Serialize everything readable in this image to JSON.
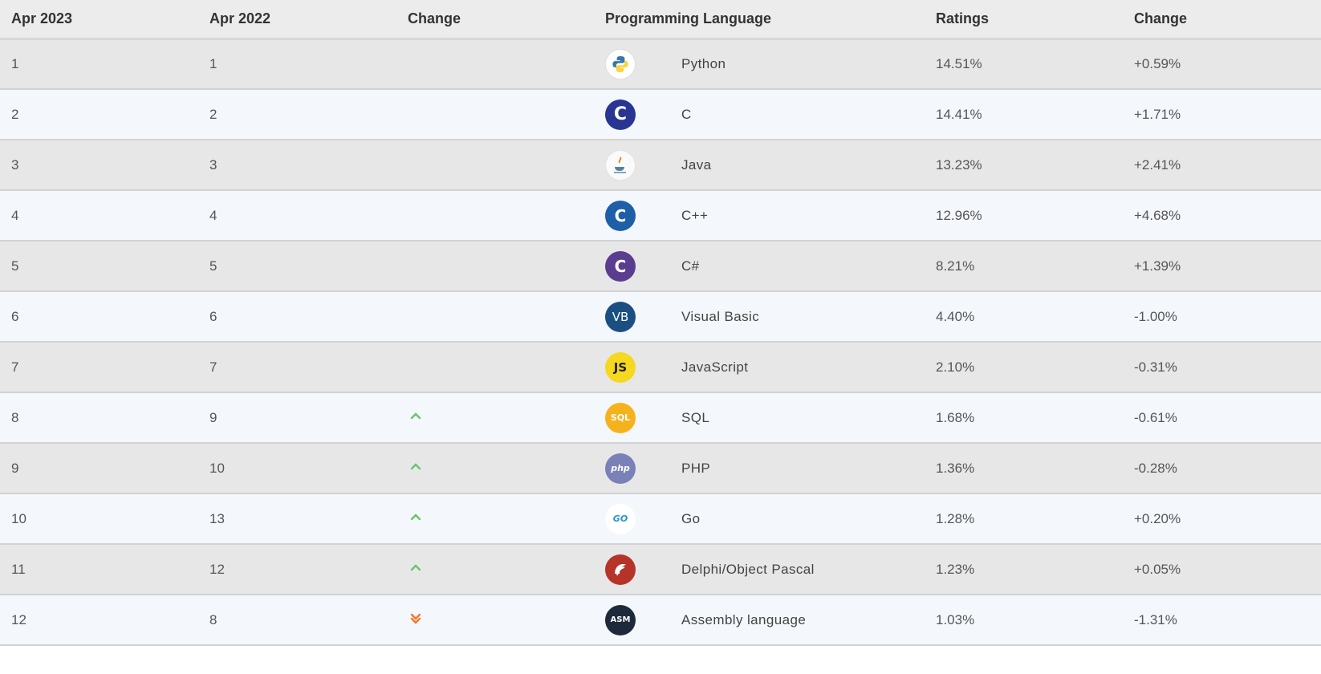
{
  "table": {
    "headers": {
      "rank_current": "Apr 2023",
      "rank_previous": "Apr 2022",
      "change": "Change",
      "language": "Programming Language",
      "ratings": "Ratings",
      "rating_change": "Change"
    },
    "rows": [
      {
        "rank": "1",
        "prev": "1",
        "change": "",
        "icon": "python-icon",
        "icon_text": "",
        "language": "Python",
        "rating": "14.51%",
        "delta": "+0.59%"
      },
      {
        "rank": "2",
        "prev": "2",
        "change": "",
        "icon": "c-icon",
        "icon_text": "C",
        "language": "C",
        "rating": "14.41%",
        "delta": "+1.71%"
      },
      {
        "rank": "3",
        "prev": "3",
        "change": "",
        "icon": "java-icon",
        "icon_text": "",
        "language": "Java",
        "rating": "13.23%",
        "delta": "+2.41%"
      },
      {
        "rank": "4",
        "prev": "4",
        "change": "",
        "icon": "cpp-icon",
        "icon_text": "C",
        "language": "C++",
        "rating": "12.96%",
        "delta": "+4.68%"
      },
      {
        "rank": "5",
        "prev": "5",
        "change": "",
        "icon": "csharp-icon",
        "icon_text": "C",
        "language": "C#",
        "rating": "8.21%",
        "delta": "+1.39%"
      },
      {
        "rank": "6",
        "prev": "6",
        "change": "",
        "icon": "visual-basic-icon",
        "icon_text": "VB",
        "language": "Visual Basic",
        "rating": "4.40%",
        "delta": "-1.00%"
      },
      {
        "rank": "7",
        "prev": "7",
        "change": "",
        "icon": "javascript-icon",
        "icon_text": "JS",
        "language": "JavaScript",
        "rating": "2.10%",
        "delta": "-0.31%"
      },
      {
        "rank": "8",
        "prev": "9",
        "change": "up",
        "icon": "sql-icon",
        "icon_text": "SQL",
        "language": "SQL",
        "rating": "1.68%",
        "delta": "-0.61%"
      },
      {
        "rank": "9",
        "prev": "10",
        "change": "up",
        "icon": "php-icon",
        "icon_text": "php",
        "language": "PHP",
        "rating": "1.36%",
        "delta": "-0.28%"
      },
      {
        "rank": "10",
        "prev": "13",
        "change": "up",
        "icon": "go-icon",
        "icon_text": "GO",
        "language": "Go",
        "rating": "1.28%",
        "delta": "+0.20%"
      },
      {
        "rank": "11",
        "prev": "12",
        "change": "up",
        "icon": "delphi-icon",
        "icon_text": "",
        "language": "Delphi/Object Pascal",
        "rating": "1.23%",
        "delta": "+0.05%"
      },
      {
        "rank": "12",
        "prev": "8",
        "change": "down-double",
        "icon": "assembly-icon",
        "icon_text": "ASM",
        "language": "Assembly language",
        "rating": "1.03%",
        "delta": "-1.31%"
      }
    ]
  },
  "colors": {
    "up_arrow": "#6cc36a",
    "down_arrow": "#f07a2a"
  }
}
